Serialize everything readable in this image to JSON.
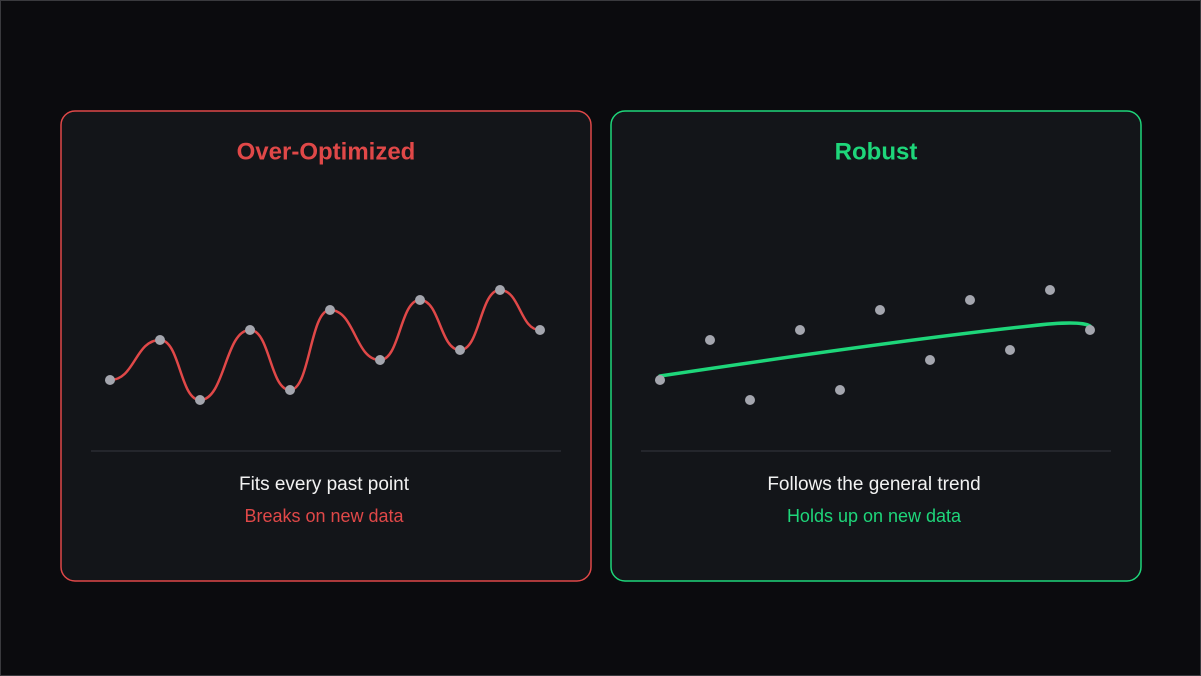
{
  "panels": [
    {
      "title": "Over-Optimized",
      "caption": "Fits every past point",
      "subcaption": "Breaks on new data"
    },
    {
      "title": "Robust",
      "caption": "Follows the general trend",
      "subcaption": "Holds up on new data"
    }
  ]
}
